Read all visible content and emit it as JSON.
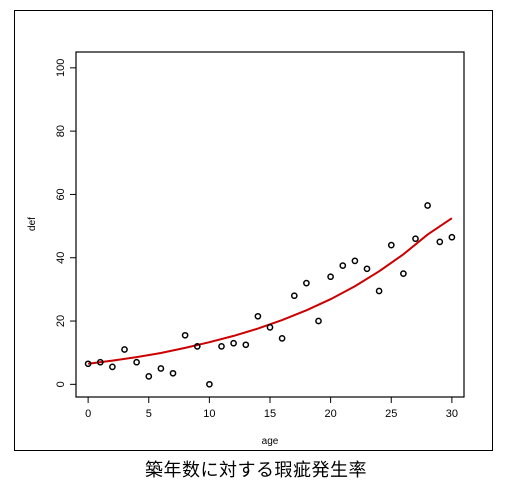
{
  "caption": "築年数に対する瑕疵発生率",
  "chart_data": {
    "type": "scatter",
    "title": "",
    "xlabel": "age",
    "ylabel": "def",
    "xlim": [
      -1,
      31
    ],
    "ylim": [
      -4,
      105
    ],
    "xticks": [
      0,
      5,
      10,
      15,
      20,
      25,
      30
    ],
    "yticks": [
      0,
      20,
      40,
      60,
      80,
      100
    ],
    "grid": false,
    "point_color": "#000000",
    "fit_color": "#cc0000",
    "points": {
      "x": [
        0,
        1,
        2,
        3,
        4,
        5,
        6,
        7,
        8,
        9,
        10,
        11,
        12,
        13,
        14,
        15,
        16,
        17,
        18,
        19,
        20,
        21,
        22,
        23,
        24,
        25,
        26,
        27,
        28,
        29,
        30
      ],
      "y": [
        6.5,
        7,
        5.5,
        11,
        7,
        2.5,
        5,
        3.5,
        15.5,
        12,
        0,
        12,
        13,
        12.5,
        21.5,
        18,
        14.5,
        28,
        32,
        20,
        34,
        37.5,
        39,
        36.5,
        29.5,
        44,
        35,
        46,
        56.5,
        45,
        46.5
      ]
    },
    "fit_line": {
      "x": [
        0,
        2,
        4,
        6,
        8,
        10,
        12,
        14,
        16,
        18,
        20,
        22,
        24,
        26,
        28,
        30
      ],
      "y": [
        6.5,
        7.5,
        8.6,
        9.9,
        11.5,
        13.3,
        15.3,
        17.6,
        20.3,
        23.4,
        26.9,
        31.0,
        35.7,
        41.1,
        47.3,
        52.5
      ]
    }
  }
}
